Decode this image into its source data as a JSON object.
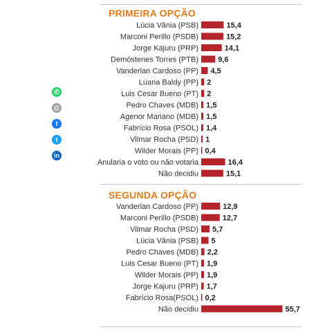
{
  "share_icons": [
    "whatsapp-icon",
    "email-icon",
    "facebook-icon",
    "twitter-icon",
    "linkedin-icon"
  ],
  "colors": {
    "title": "#e07b1a",
    "bar": "#b5242a",
    "text": "#333333"
  },
  "chart_data": [
    {
      "type": "bar",
      "orientation": "horizontal",
      "title": "PRIMEIRA OPÇÃO",
      "categories": [
        "Lúcia Vânia (PSB)",
        "Marconi Perillo (PSDB)",
        "Jorge Kajuru (PRP)",
        "Demóstenes Torres (PTB)",
        "Vanderlan Cardoso (PP)",
        "Luana Baldy (PP)",
        "Luis Cesar Bueno (PT)",
        "Pedro Chaves (MDB)",
        "Agenor Mariano (MDB)",
        "Fabrício Rosa (PSOL)",
        "Vilmar Rocha (PSD)",
        "Wilder Morais (PP)",
        "Anularia o voto ou não votaria",
        "Não decidiu"
      ],
      "values": [
        15.4,
        15.2,
        14.1,
        9.6,
        4.5,
        2,
        2,
        1.5,
        1.5,
        1.4,
        1,
        0.4,
        16.4,
        15.1
      ],
      "labels": [
        "15,4",
        "15,2",
        "14,1",
        "9,6",
        "4,5",
        "2",
        "2",
        "1,5",
        "1,5",
        "1,4",
        "1",
        "0,4",
        "16,4",
        "15,1"
      ]
    },
    {
      "type": "bar",
      "orientation": "horizontal",
      "title": "SEGUNDA OPÇÃO",
      "categories": [
        "Vanderlan Cardoso (PP)",
        "Marconi Perillo (PSDB)",
        "Vilmar Rocha (PSD)",
        "Lúcia Vânia (PSB)",
        "Pedro Chaves (MDB)",
        "Luis Cesar Bueno (PT)",
        "Wilder Morais (PP)",
        "Jorge Kajuru (PRP)",
        "Fabrício Rosa(PSOL)",
        "Não decidiu"
      ],
      "values": [
        12.9,
        12.7,
        5.7,
        5,
        2.2,
        1.9,
        1.9,
        1.7,
        0.2,
        55.7
      ],
      "labels": [
        "12,9",
        "12,7",
        "5,7",
        "5",
        "2,2",
        "1,9",
        "1,9",
        "1,7",
        "0,2",
        "55,7"
      ]
    }
  ]
}
